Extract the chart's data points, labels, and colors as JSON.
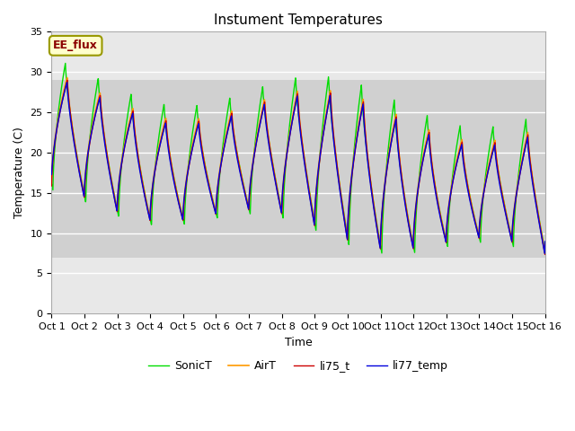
{
  "title": "Instument Temperatures",
  "xlabel": "Time",
  "ylabel": "Temperature (C)",
  "ylim": [
    0,
    35
  ],
  "xlim": [
    0,
    15
  ],
  "xtick_labels": [
    "Oct 1",
    "Oct 2",
    "Oct 3",
    "Oct 4",
    "Oct 5",
    "Oct 6",
    "Oct 7",
    "Oct 8",
    "Oct 9",
    "Oct 10",
    "Oct 11",
    "Oct 12",
    "Oct 13",
    "Oct 14",
    "Oct 15",
    "Oct 16"
  ],
  "annotation_text": "EE_flux",
  "shade_ymin": 7,
  "shade_ymax": 29,
  "colors": {
    "li75_t": "#cc0000",
    "li77_temp": "#0000dd",
    "SonicT": "#00dd00",
    "AirT": "#ff9900"
  },
  "bg_color": "#e8e8e8",
  "title_fontsize": 11,
  "axis_fontsize": 9,
  "tick_fontsize": 8,
  "legend_fontsize": 9
}
